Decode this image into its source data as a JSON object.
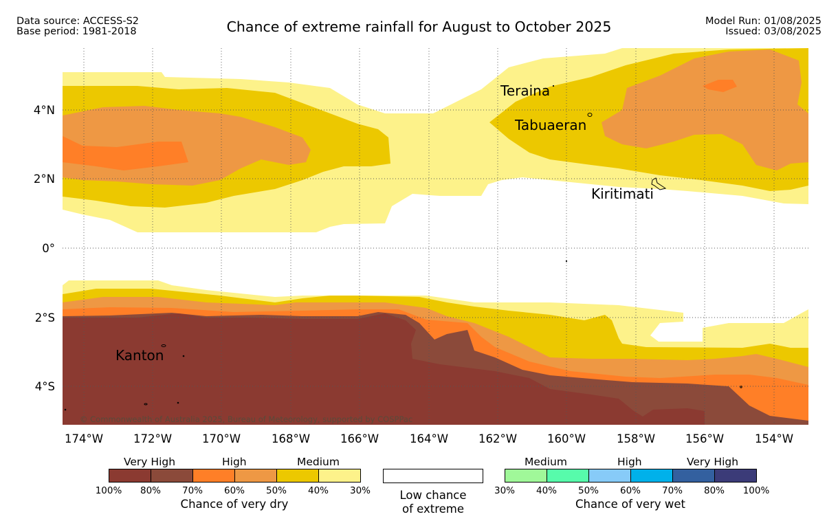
{
  "header": {
    "data_source": "Data source: ACCESS-S2",
    "base_period": "Base period: 1981-2018",
    "title": "Chance of extreme rainfall for August to October 2025",
    "model_run": "Model Run: 01/08/2025",
    "issued": "Issued: 03/08/2025"
  },
  "map": {
    "lon_range": [
      -174.6,
      -152.9
    ],
    "lat_range": [
      -5.1,
      5.8
    ],
    "lon_ticks": [
      "174°W",
      "172°W",
      "170°W",
      "168°W",
      "166°W",
      "164°W",
      "162°W",
      "160°W",
      "158°W",
      "156°W",
      "154°W"
    ],
    "lat_ticks": [
      "4°N",
      "2°N",
      "0°",
      "2°S",
      "4°S"
    ],
    "places": [
      "Teraina",
      "Tabuaeran",
      "Kiritimati",
      "Kanton"
    ],
    "copyright": "© Commonwealth of Australia 2025, Bureau of Meteorology, supported by COSPPac"
  },
  "legend": {
    "dry": {
      "groups": [
        "Very High",
        "High",
        "Medium"
      ],
      "ticks": [
        "100%",
        "80%",
        "70%",
        "60%",
        "50%",
        "40%",
        "30%"
      ],
      "colors": [
        "#8b3a31",
        "#8b4a3a",
        "#ff7f27",
        "#ee9844",
        "#ecc800",
        "#fdf28a"
      ],
      "title": "Chance of very dry"
    },
    "low": {
      "line1": "Low chance",
      "line2": "of extreme",
      "color": "#ffffff"
    },
    "wet": {
      "groups": [
        "Medium",
        "High",
        "Very High"
      ],
      "ticks": [
        "30%",
        "40%",
        "50%",
        "60%",
        "70%",
        "80%",
        "100%"
      ],
      "colors": [
        "#a0f899",
        "#57fbab",
        "#87cbf8",
        "#00b1ea",
        "#33609f",
        "#3b3b78"
      ],
      "title": "Chance of very wet"
    }
  }
}
